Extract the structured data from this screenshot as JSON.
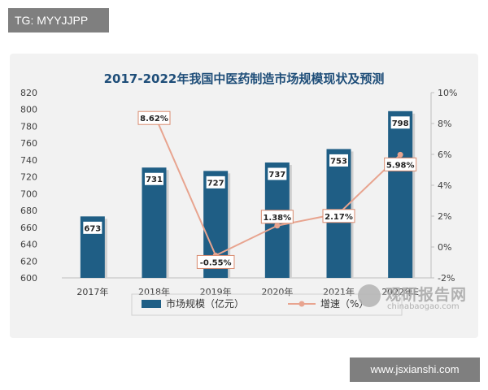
{
  "badges": {
    "top": "TG: MYYJJPP",
    "bottom": "www.jsxianshi.com"
  },
  "watermark": {
    "name": "观研报告网",
    "url": "chinabaogao.com"
  },
  "chart_data": {
    "type": "bar",
    "title": "2017-2022年我国中医药制造市场规模现状及预测",
    "categories": [
      "2017年",
      "2018年",
      "2019年",
      "2020年",
      "2021年",
      "2022年E"
    ],
    "series": [
      {
        "name": "市场规模（亿元）",
        "type": "bar",
        "axis": "left",
        "values": [
          673,
          731,
          727,
          737,
          753,
          798
        ],
        "labels": [
          "673",
          "731",
          "727",
          "737",
          "753",
          "798"
        ],
        "color": "#1f5e85"
      },
      {
        "name": "增速（%）",
        "type": "line",
        "axis": "right",
        "values": [
          null,
          8.62,
          -0.55,
          1.38,
          2.17,
          5.98
        ],
        "labels": [
          "",
          "8.62%",
          "-0.55%",
          "1.38%",
          "2.17%",
          "5.98%"
        ],
        "color": "#e8a48f"
      }
    ],
    "y_left": {
      "min": 600,
      "max": 820,
      "ticks": [
        "600",
        "620",
        "640",
        "660",
        "680",
        "700",
        "720",
        "740",
        "760",
        "780",
        "800",
        "820"
      ]
    },
    "y_right": {
      "min": -2,
      "max": 10,
      "ticks": [
        "-2%",
        "0%",
        "2%",
        "4%",
        "6%",
        "8%",
        "10%"
      ]
    },
    "legend_position": "bottom",
    "grid": false,
    "colors": {
      "bar": "#1f5e85",
      "line": "#e8a48f",
      "title": "#1f4e79",
      "label_border_bar": "#1f5e85",
      "label_border_line": "#d98b6f"
    }
  }
}
